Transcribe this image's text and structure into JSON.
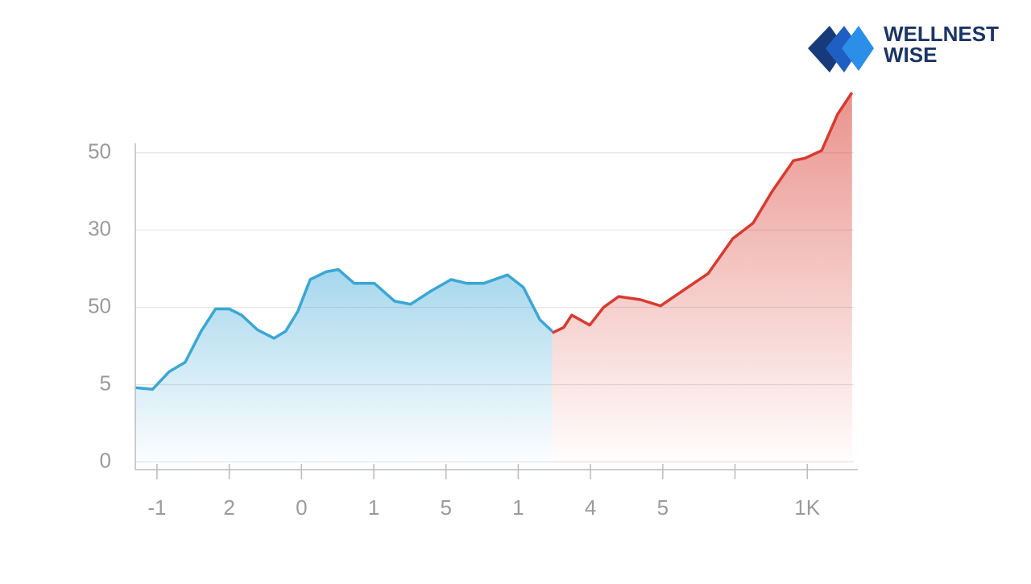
{
  "brand": {
    "line1": "WELLNEST",
    "line2": "WISE"
  },
  "chart_data": {
    "type": "line",
    "grid": true,
    "area": true,
    "xlim": [
      -0.3,
      9.7
    ],
    "ylim": [
      -0.1,
      4.8
    ],
    "xticks": [
      {
        "value": 0,
        "label": "-1"
      },
      {
        "value": 1,
        "label": "2"
      },
      {
        "value": 2,
        "label": "0"
      },
      {
        "value": 3,
        "label": "1"
      },
      {
        "value": 4,
        "label": "5"
      },
      {
        "value": 5,
        "label": "1"
      },
      {
        "value": 6,
        "label": "4"
      },
      {
        "value": 7,
        "label": "5"
      },
      {
        "value": 8,
        "label": null
      },
      {
        "value": 9,
        "label": "1K"
      }
    ],
    "yticks": [
      0,
      {
        "value": 1,
        "label": "5"
      },
      {
        "value": 2,
        "label": "50"
      },
      {
        "value": 3,
        "label": "30"
      },
      {
        "value": 4,
        "label": "50"
      }
    ],
    "series": [
      {
        "color": "#3aa6d6",
        "x": [
          -0.3,
          -0.06,
          0.17,
          0.39,
          0.61,
          0.81,
          1.0,
          1.17,
          1.39,
          1.62,
          1.78,
          1.95,
          2.12,
          2.34,
          2.51,
          2.73,
          3.01,
          3.29,
          3.51,
          3.79,
          4.07,
          4.29,
          4.52,
          4.85,
          5.07,
          5.3,
          5.47
        ],
        "values": [
          0.96,
          0.94,
          1.17,
          1.29,
          1.69,
          1.98,
          1.98,
          1.9,
          1.71,
          1.6,
          1.69,
          1.95,
          2.36,
          2.46,
          2.49,
          2.31,
          2.31,
          2.08,
          2.04,
          2.21,
          2.36,
          2.31,
          2.31,
          2.42,
          2.26,
          1.84,
          1.69
        ]
      },
      {
        "color": "#d93a2f",
        "x": [
          5.47,
          5.63,
          5.74,
          5.99,
          6.18,
          6.39,
          6.69,
          6.97,
          7.3,
          7.63,
          7.97,
          8.25,
          8.52,
          8.81,
          8.97,
          9.2,
          9.42,
          9.62
        ],
        "values": [
          1.67,
          1.74,
          1.9,
          1.77,
          2.0,
          2.14,
          2.1,
          2.02,
          2.23,
          2.44,
          2.89,
          3.09,
          3.51,
          3.9,
          3.93,
          4.03,
          4.5,
          4.78
        ]
      }
    ]
  }
}
